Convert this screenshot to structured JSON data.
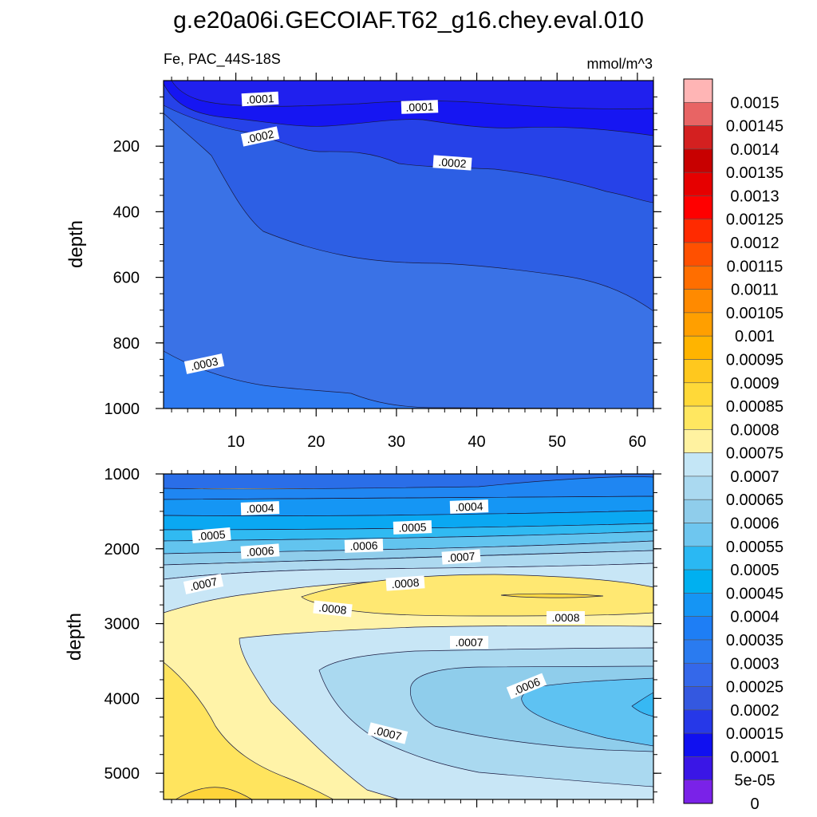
{
  "chart_data": {
    "type": "contour",
    "title": "g.e20a06i.GECOIAF.T62_g16.chey.eval.010",
    "variable_label": "Fe, PAC_44S-18S",
    "units_label": "mmol/m^3",
    "xaxis": {
      "range": [
        1,
        62
      ],
      "ticks": [
        10,
        20,
        30,
        40,
        50,
        60
      ]
    },
    "colorbar": {
      "labels": [
        "0.0015",
        "0.00145",
        "0.0014",
        "0.00135",
        "0.0013",
        "0.00125",
        "0.0012",
        "0.00115",
        "0.0011",
        "0.00105",
        "0.001",
        "0.00095",
        "0.0009",
        "0.00085",
        "0.0008",
        "0.00075",
        "0.0007",
        "0.00065",
        "0.0006",
        "0.00055",
        "0.0005",
        "0.00045",
        "0.0004",
        "0.00035",
        "0.0003",
        "0.00025",
        "0.0002",
        "0.00015",
        "0.0001",
        "5e-05",
        "0"
      ],
      "colors": [
        "#ffb5b5",
        "#e86464",
        "#d42020",
        "#c80000",
        "#e60000",
        "#ff0000",
        "#ff2a00",
        "#ff5000",
        "#ff6e00",
        "#ff8a00",
        "#ff9f00",
        "#ffb400",
        "#ffc81e",
        "#ffd938",
        "#ffe760",
        "#fff2a0",
        "#c4e6f6",
        "#aad9f0",
        "#8fcdeb",
        "#6ec6ef",
        "#2ab8f3",
        "#00b0f0",
        "#1595f4",
        "#1e7ef5",
        "#2a7bf0",
        "#3468ea",
        "#3458e0",
        "#2638e8",
        "#1010f0",
        "#3a16e6",
        "#7a22e8"
      ]
    },
    "upper_panel": {
      "ylabel": "depth",
      "ylim": [
        0,
        1000
      ],
      "yticks": [
        200,
        400,
        600,
        800,
        1000
      ],
      "contour_labels": [
        ".0001",
        ".0001",
        ".0002",
        ".0002",
        ".0003"
      ]
    },
    "lower_panel": {
      "ylabel": "depth",
      "ylim": [
        1000,
        5350
      ],
      "yticks": [
        1000,
        2000,
        3000,
        4000,
        5000
      ],
      "contour_labels": [
        ".0004",
        ".0004",
        ".0005",
        ".0005",
        ".0006",
        ".0006",
        ".0007",
        ".0007",
        ".0008",
        ".0008",
        ".0008",
        ".0007",
        ".0006",
        ".0007"
      ]
    }
  }
}
